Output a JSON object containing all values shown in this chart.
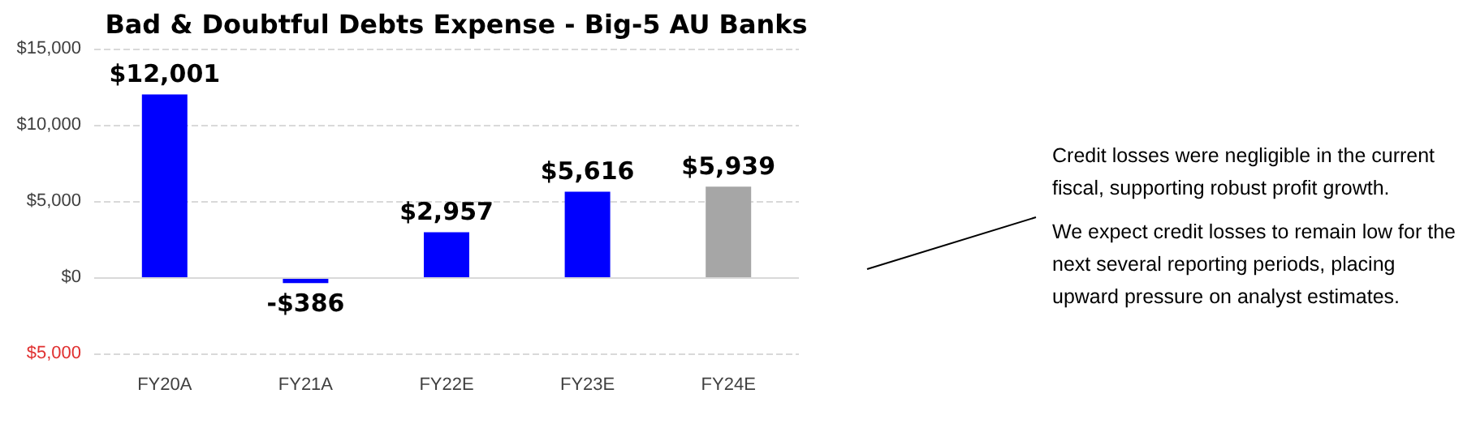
{
  "chart_data": {
    "type": "bar",
    "title": "Bad & Doubtful Debts Expense - Big-5 AU Banks",
    "categories": [
      "FY20A",
      "FY21A",
      "FY22E",
      "FY23E",
      "FY24E"
    ],
    "values": [
      12001,
      -386,
      2957,
      5616,
      5939
    ],
    "colors": [
      "#0000ff",
      "#0000ff",
      "#0000ff",
      "#0000ff",
      "#a6a6a6"
    ],
    "value_labels": [
      "$12,001",
      "-$386",
      "$2,957",
      "$5,616",
      "$5,939"
    ],
    "ylim": [
      -5000,
      15000
    ],
    "yticks": [
      {
        "value": -5000,
        "label": "$5,000"
      },
      {
        "value": 0,
        "label": "$0"
      },
      {
        "value": 5000,
        "label": "$5,000"
      },
      {
        "value": 10000,
        "label": "$10,000"
      },
      {
        "value": 15000,
        "label": "$15,000"
      }
    ],
    "grid": "y",
    "annotations": [
      "Credit losses were negligible in the current fiscal, supporting robust profit growth.",
      "We expect credit losses to remain low for the next several reporting periods, placing upward pressure on analyst estimates."
    ]
  }
}
